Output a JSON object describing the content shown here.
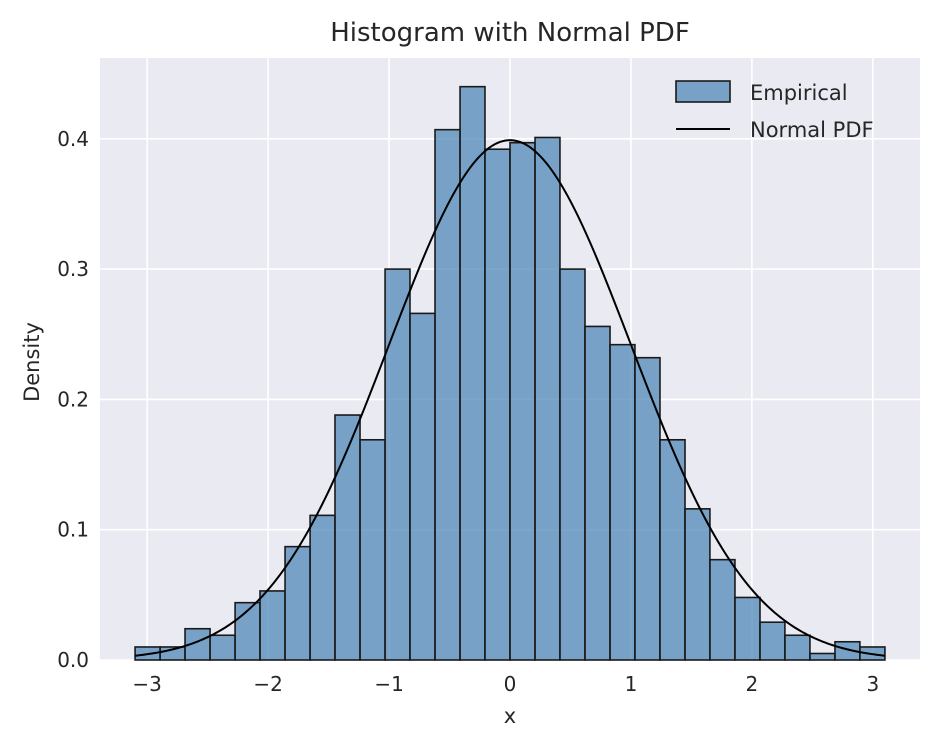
{
  "chart_data": {
    "type": "bar",
    "title": "Histogram with Normal PDF",
    "xlabel": "x",
    "ylabel": "Density",
    "xlim": [
      -3.39,
      3.39
    ],
    "ylim": [
      0,
      0.462
    ],
    "x_ticks": [
      -3,
      -2,
      -1,
      0,
      1,
      2,
      3
    ],
    "x_tick_labels": [
      "−3",
      "−2",
      "−1",
      "0",
      "1",
      "2",
      "3"
    ],
    "y_ticks": [
      0.0,
      0.1,
      0.2,
      0.3,
      0.4
    ],
    "y_tick_labels": [
      "0.0",
      "0.1",
      "0.2",
      "0.3",
      "0.4"
    ],
    "grid": true,
    "legend_position": "top-right",
    "series": [
      {
        "name": "Empirical",
        "kind": "histogram",
        "color": "#4682B4",
        "edge_color": "#1a1a1a",
        "bin_edges": [
          -3.1,
          -2.893,
          -2.687,
          -2.48,
          -2.273,
          -2.067,
          -1.86,
          -1.653,
          -1.447,
          -1.24,
          -1.033,
          -0.827,
          -0.62,
          -0.413,
          -0.207,
          0.0,
          0.207,
          0.413,
          0.62,
          0.827,
          1.033,
          1.24,
          1.447,
          1.653,
          1.86,
          2.067,
          2.273,
          2.48,
          2.687,
          2.893,
          3.1
        ],
        "values": [
          0.01,
          0.01,
          0.024,
          0.019,
          0.044,
          0.053,
          0.087,
          0.111,
          0.188,
          0.169,
          0.3,
          0.266,
          0.407,
          0.44,
          0.392,
          0.397,
          0.401,
          0.3,
          0.256,
          0.242,
          0.232,
          0.169,
          0.116,
          0.077,
          0.048,
          0.029,
          0.019,
          0.005,
          0.014,
          0.01
        ]
      },
      {
        "name": "Normal PDF",
        "kind": "line",
        "color": "#000000",
        "function": "normal_pdf",
        "mean": 0,
        "std": 1,
        "x_range": [
          -3.1,
          3.1
        ]
      }
    ]
  }
}
